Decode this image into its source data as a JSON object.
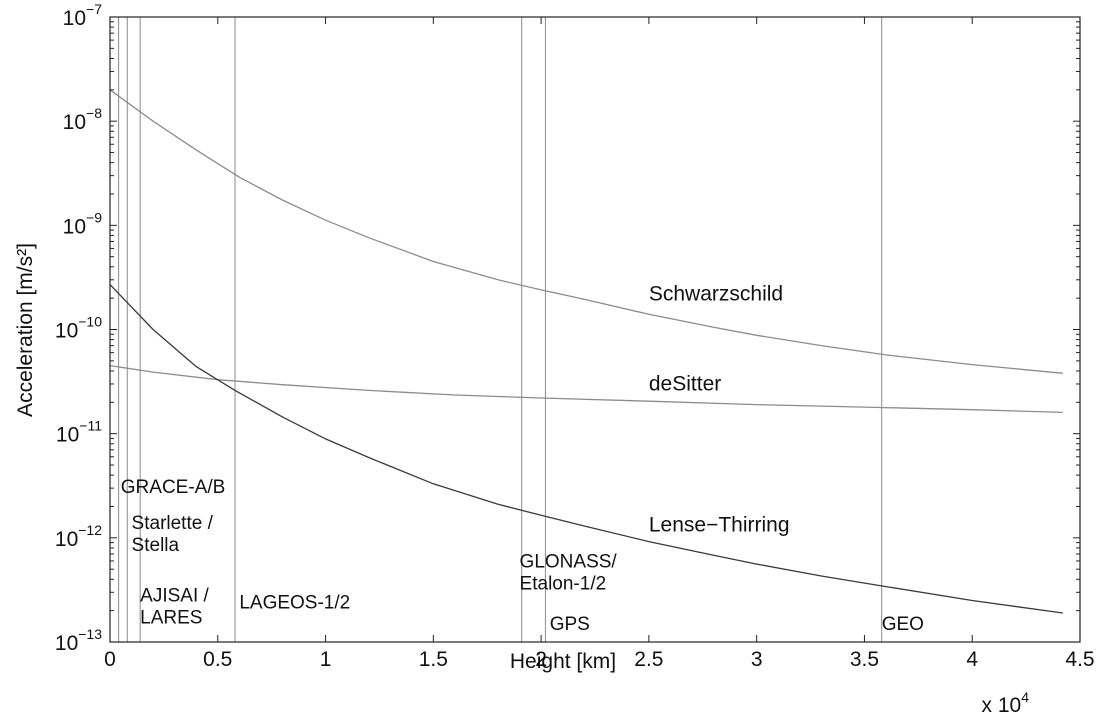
{
  "chart_data": {
    "type": "line",
    "xlabel": "Height [km]",
    "ylabel": "Acceleration [m/s²]",
    "x_multiplier_label": "x 10",
    "x_multiplier_exp": "4",
    "xlim": [
      0,
      45000
    ],
    "ylim": [
      1e-13,
      1e-07
    ],
    "yscale": "log",
    "grid": false,
    "x_ticks": [
      {
        "value": 0,
        "label": "0"
      },
      {
        "value": 5000,
        "label": "0.5"
      },
      {
        "value": 10000,
        "label": "1"
      },
      {
        "value": 15000,
        "label": "1.5"
      },
      {
        "value": 20000,
        "label": "2"
      },
      {
        "value": 25000,
        "label": "2.5"
      },
      {
        "value": 30000,
        "label": "3"
      },
      {
        "value": 35000,
        "label": "3.5"
      },
      {
        "value": 40000,
        "label": "4"
      },
      {
        "value": 45000,
        "label": "4.5"
      }
    ],
    "y_ticks": [
      {
        "value": 1e-13,
        "base": "10",
        "exp": "−13"
      },
      {
        "value": 1e-12,
        "base": "10",
        "exp": "−12"
      },
      {
        "value": 1e-11,
        "base": "10",
        "exp": "−11"
      },
      {
        "value": 1e-10,
        "base": "10",
        "exp": "−10"
      },
      {
        "value": 1e-09,
        "base": "10",
        "exp": "−9"
      },
      {
        "value": 1e-08,
        "base": "10",
        "exp": "−8"
      },
      {
        "value": 1e-07,
        "base": "10",
        "exp": "−7"
      }
    ],
    "series": [
      {
        "name": "Schwarzschild",
        "color": "#8c8c8c",
        "label_at": [
          25000,
          1.9e-10
        ],
        "x": [
          0,
          2000,
          4000,
          6000,
          8000,
          10000,
          12000,
          15000,
          18000,
          20000,
          22000,
          25000,
          28000,
          30000,
          33000,
          36000,
          40000,
          44200
        ],
        "y": [
          2e-08,
          1e-08,
          5.3e-09,
          2.9e-09,
          1.75e-09,
          1.12e-09,
          7.6e-10,
          4.5e-10,
          3e-10,
          2.4e-10,
          1.95e-10,
          1.4e-10,
          1.05e-10,
          8.8e-11,
          7e-11,
          5.7e-11,
          4.6e-11,
          3.8e-11
        ]
      },
      {
        "name": "deSitter",
        "color": "#8c8c8c",
        "label_at": [
          25000,
          2.6e-11
        ],
        "x": [
          0,
          2000,
          5000,
          8000,
          12000,
          16000,
          20000,
          25000,
          30000,
          35000,
          40000,
          44200
        ],
        "y": [
          4.5e-11,
          3.9e-11,
          3.3e-11,
          2.95e-11,
          2.6e-11,
          2.35e-11,
          2.2e-11,
          2.05e-11,
          1.9e-11,
          1.8e-11,
          1.7e-11,
          1.6e-11
        ]
      },
      {
        "name": "Lense−Thirring",
        "color": "#3a3a3a",
        "label_at": [
          25000,
          1.15e-12
        ],
        "x": [
          0,
          2000,
          4000,
          5800,
          8000,
          10000,
          12000,
          15000,
          18000,
          20000,
          22000,
          25000,
          28000,
          30000,
          33000,
          36000,
          40000,
          44200
        ],
        "y": [
          2.7e-10,
          1e-10,
          4.4e-11,
          2.6e-11,
          1.45e-11,
          8.9e-12,
          5.9e-12,
          3.3e-12,
          2.1e-12,
          1.65e-12,
          1.3e-12,
          9.2e-13,
          6.8e-13,
          5.6e-13,
          4.3e-13,
          3.4e-13,
          2.5e-13,
          1.9e-13
        ]
      }
    ],
    "vertical_markers": [
      {
        "x": 400,
        "label": "GRACE-A/B",
        "label_pos": [
          500,
          2.7e-12
        ]
      },
      {
        "x": 800,
        "label": "Starlette / Stella",
        "label_pos": [
          1000,
          7.5e-13
        ]
      },
      {
        "x": 1400,
        "label": "AJISAI / LARES",
        "label_pos": [
          1400,
          1.5e-13
        ]
      },
      {
        "x": 5800,
        "label": "LAGEOS-1/2",
        "label_pos": [
          6000,
          2.1e-13
        ]
      },
      {
        "x": 19100,
        "label": "GLONASS/ Etalon-1/2",
        "label_pos": [
          19000,
          3.2e-13
        ]
      },
      {
        "x": 20200,
        "label": "GPS",
        "label_pos": [
          20400,
          1.3e-13
        ]
      },
      {
        "x": 35800,
        "label": "GEO",
        "label_pos": [
          35800,
          1.3e-13
        ]
      }
    ]
  }
}
